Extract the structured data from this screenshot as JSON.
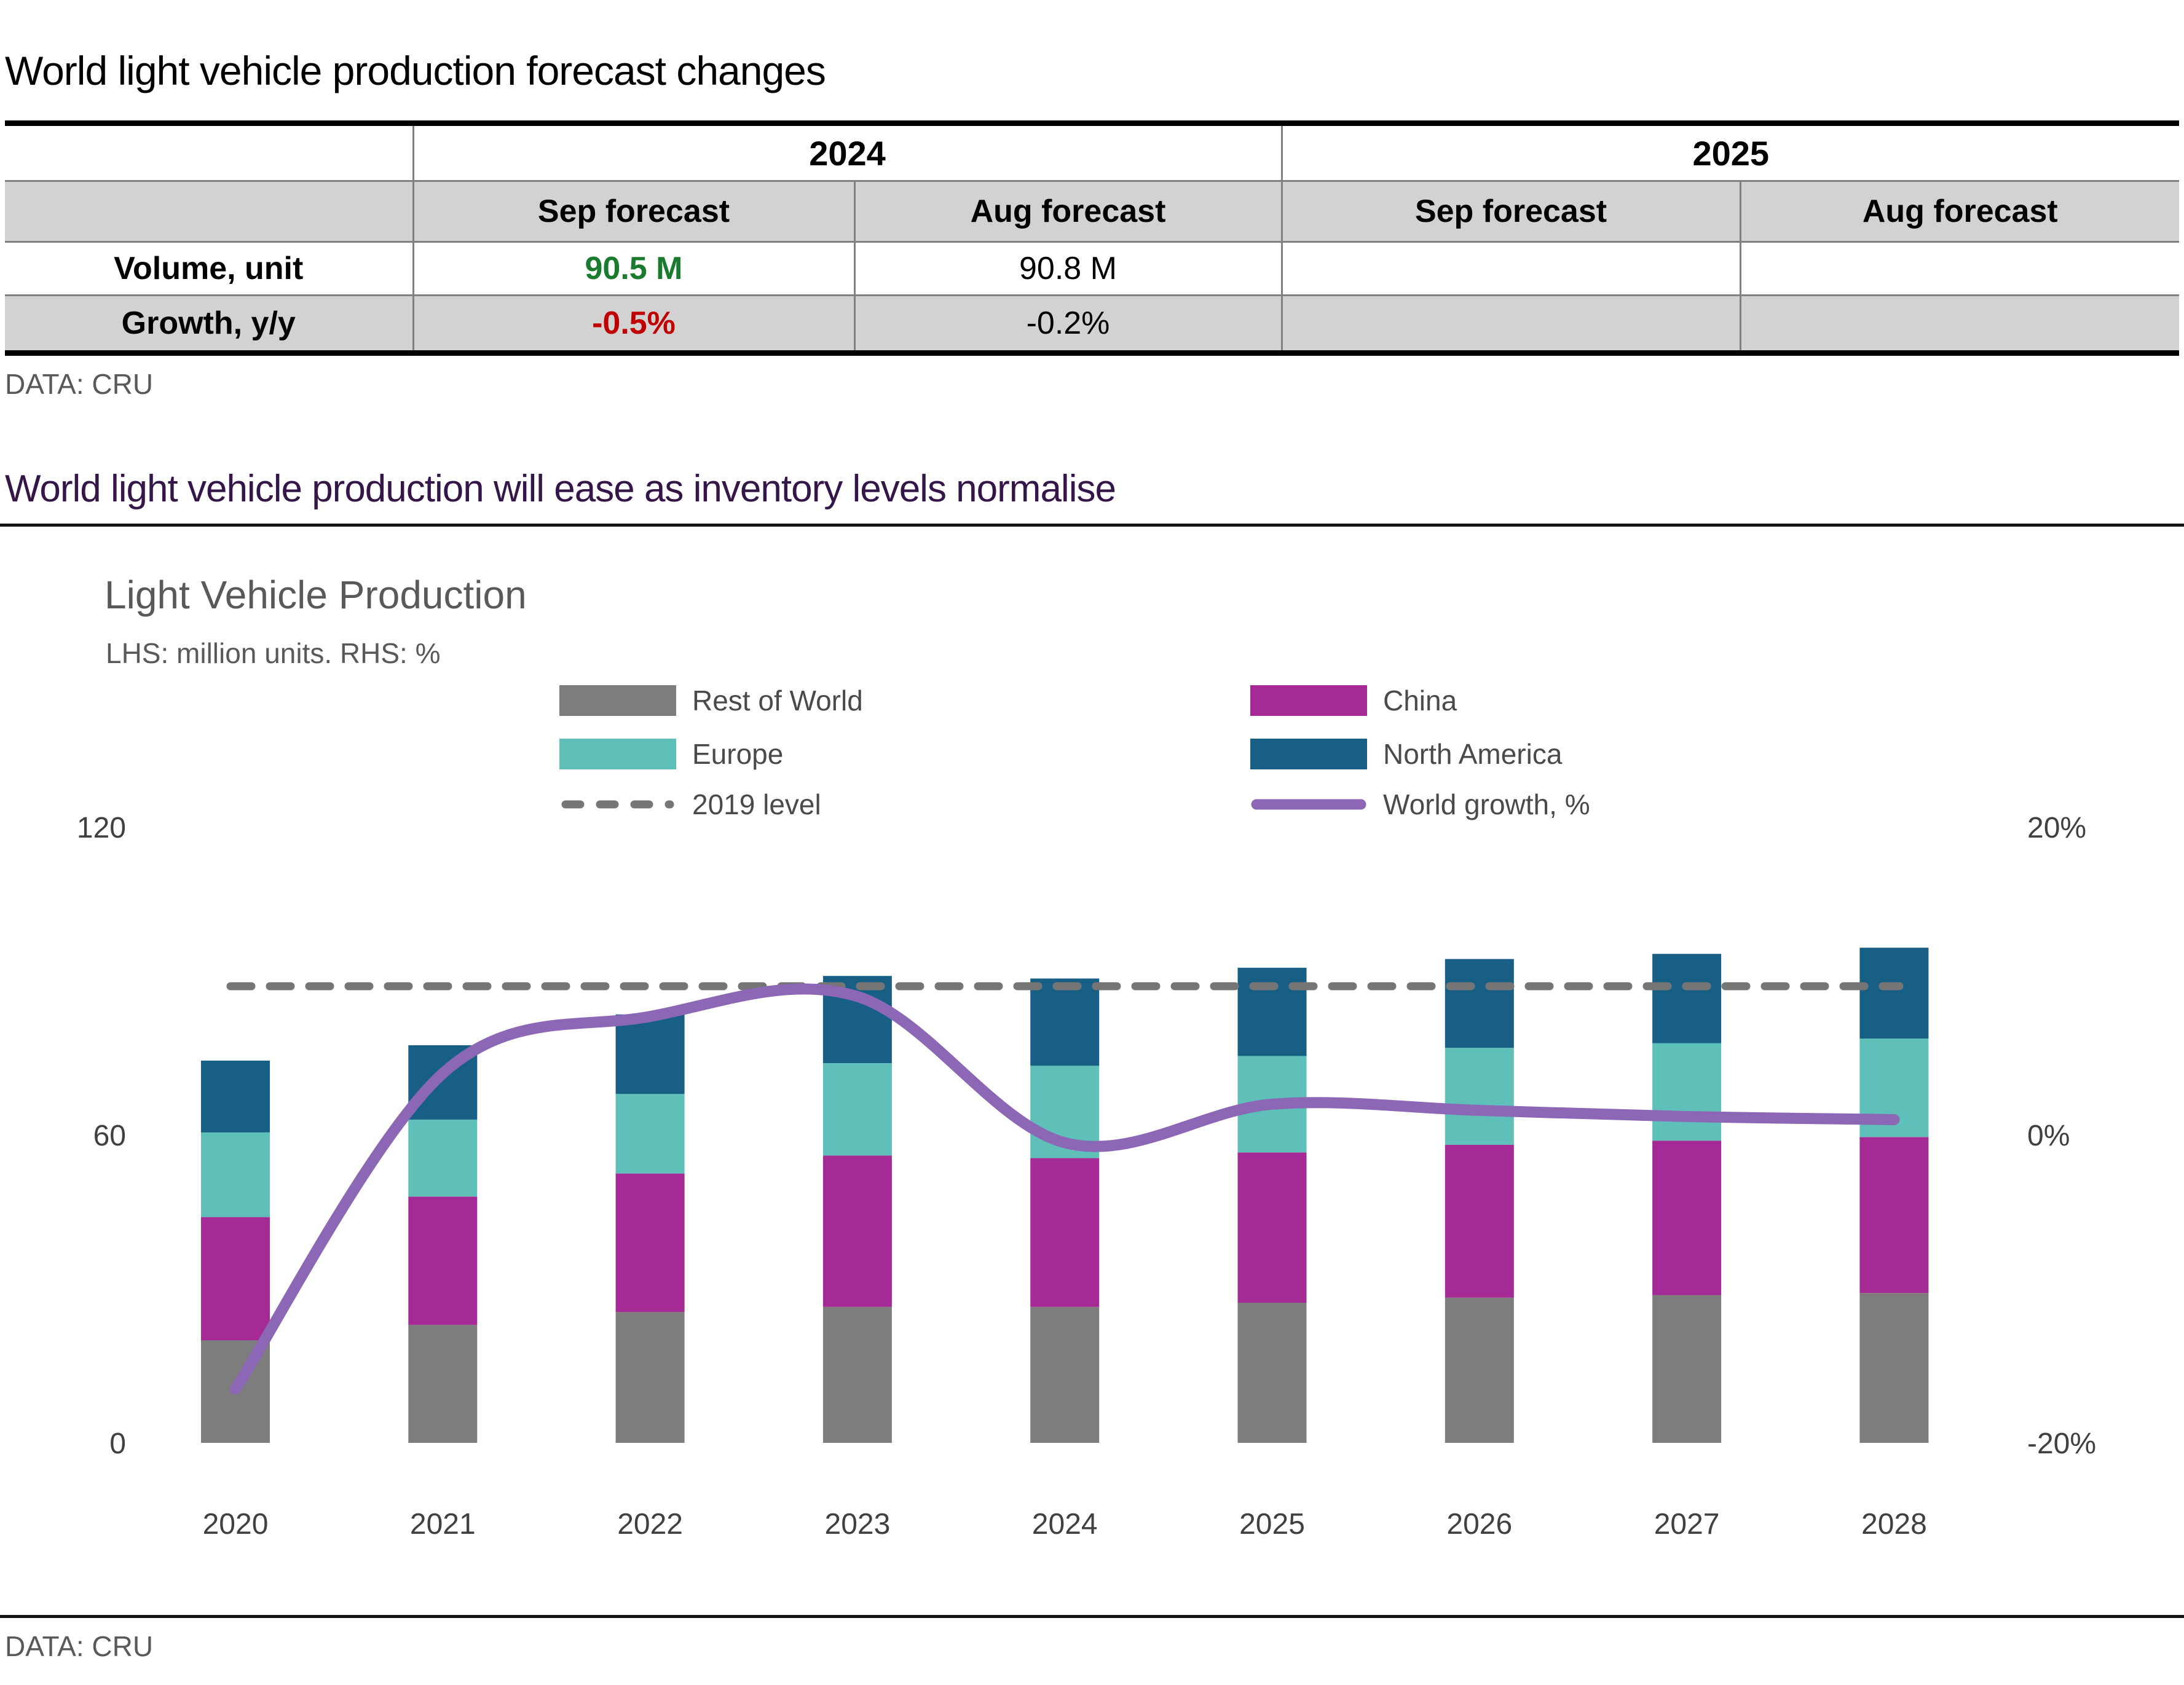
{
  "page": {
    "title": "World light vehicle production forecast changes"
  },
  "table": {
    "year_groups": [
      "2024",
      "2025"
    ],
    "col_headers": [
      "Sep forecast",
      "Aug forecast",
      "Sep forecast",
      "Aug forecast"
    ],
    "rows": [
      {
        "label": "Volume, unit",
        "values": [
          "90.5 M",
          "90.8 M",
          "",
          ""
        ]
      },
      {
        "label": "Growth, y/y",
        "values": [
          "-0.5%",
          "-0.2%",
          "",
          ""
        ]
      }
    ],
    "source": "DATA: CRU"
  },
  "section": {
    "heading": "World light vehicle production will ease as inventory levels normalise"
  },
  "chart": {
    "title": "Light Vehicle Production",
    "subtitle": "LHS: million units. RHS: %",
    "legend": [
      {
        "label": "Rest of World",
        "type": "box",
        "color": "#7d7d7d"
      },
      {
        "label": "China",
        "type": "box",
        "color": "#a62a96"
      },
      {
        "label": "Europe",
        "type": "box",
        "color": "#5fbfb9"
      },
      {
        "label": "North America",
        "type": "box",
        "color": "#175f84"
      },
      {
        "label": "2019 level",
        "type": "dash",
        "color": "#757575"
      },
      {
        "label": "World growth, %",
        "type": "line",
        "color": "#8c67b5"
      }
    ]
  },
  "chart_data": {
    "type": "bar",
    "variant": "stacked-bars-with-line",
    "title": "Light Vehicle Production",
    "unit_left": "million units",
    "unit_right": "%",
    "categories": [
      "2020",
      "2021",
      "2022",
      "2023",
      "2024",
      "2025",
      "2026",
      "2027",
      "2028"
    ],
    "series": [
      {
        "name": "Rest of World",
        "color": "#7d7d7d",
        "values": [
          20.0,
          23.0,
          25.5,
          26.5,
          26.5,
          27.3,
          28.3,
          28.8,
          29.2
        ]
      },
      {
        "name": "China",
        "color": "#a62a96",
        "values": [
          24.0,
          25.0,
          27.0,
          29.5,
          29.0,
          29.3,
          29.8,
          30.1,
          30.4
        ]
      },
      {
        "name": "Europe",
        "color": "#5fbfb9",
        "values": [
          16.5,
          15.0,
          15.5,
          18.0,
          18.0,
          18.8,
          18.9,
          19.0,
          19.2
        ]
      },
      {
        "name": "North America",
        "color": "#175f84",
        "values": [
          14.0,
          14.5,
          15.5,
          17.0,
          17.0,
          17.2,
          17.3,
          17.4,
          17.7
        ]
      }
    ],
    "line_series": {
      "name": "World growth, %",
      "color": "#8c67b5",
      "axis": "right",
      "values": [
        -16.5,
        4.0,
        7.7,
        9.0,
        -0.5,
        2.0,
        1.6,
        1.2,
        1.0
      ]
    },
    "reference_line": {
      "name": "2019 level",
      "color": "#757575",
      "style": "dashed",
      "value": 89
    },
    "left_axis": {
      "ticks": [
        "0",
        "60",
        "120"
      ],
      "tick_values": [
        0,
        60,
        120
      ],
      "range": [
        0,
        120
      ]
    },
    "right_axis": {
      "ticks": [
        "-20%",
        "0%",
        "20%"
      ],
      "tick_values": [
        -20,
        0,
        20
      ],
      "range": [
        -20,
        20
      ]
    },
    "grid": false,
    "legend_position": "top"
  },
  "footer": {
    "source": "DATA: CRU"
  },
  "colors": {
    "value_green": "#1a7a2e",
    "value_red": "#c00000",
    "table_band_bg": "#d2d2d2",
    "table_border": "#808080",
    "heading_purple": "#341648",
    "muted_text": "#595959",
    "axis_text": "#404040"
  }
}
